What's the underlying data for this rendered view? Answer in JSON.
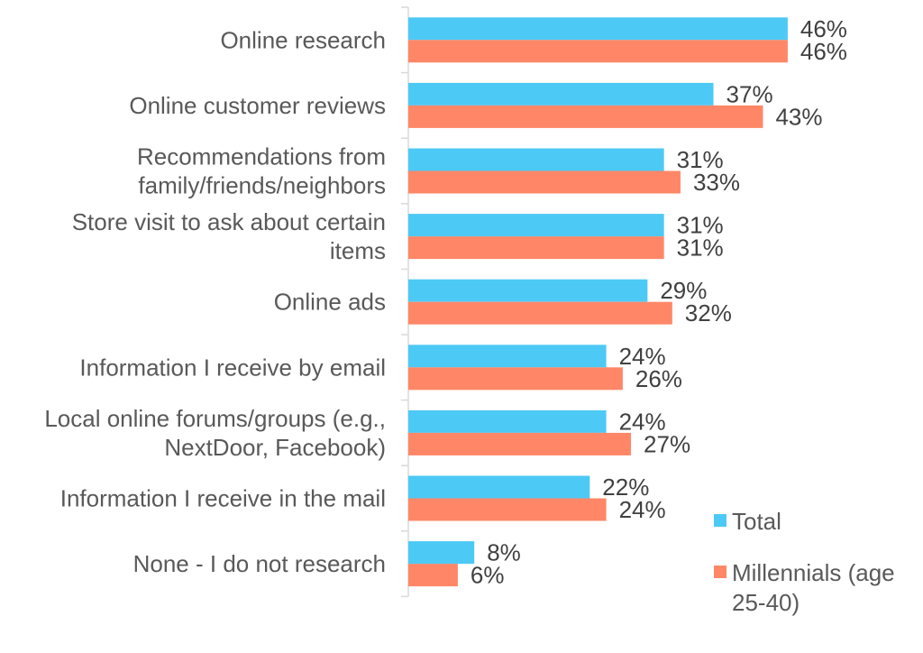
{
  "chart_data": {
    "type": "bar",
    "orientation": "horizontal",
    "categories": [
      [
        "Online research"
      ],
      [
        "Online customer reviews"
      ],
      [
        "Recommendations from",
        "family/friends/neighbors"
      ],
      [
        "Store visit to ask about certain",
        "items"
      ],
      [
        "Online ads"
      ],
      [
        "Information I receive by email"
      ],
      [
        "Local online forums/groups (e.g.,",
        "NextDoor, Facebook)"
      ],
      [
        "Information I receive in the mail"
      ],
      [
        "None - I do not research"
      ]
    ],
    "series": [
      {
        "name": "Total",
        "color": "#4DC9F6",
        "values": [
          46,
          37,
          31,
          31,
          29,
          24,
          24,
          22,
          8
        ]
      },
      {
        "name": "Millennials (age 25-40)",
        "color": "#FF8767",
        "values": [
          46,
          43,
          33,
          31,
          32,
          26,
          27,
          24,
          6
        ]
      }
    ],
    "value_format": "percent",
    "xlim": [
      0,
      50
    ],
    "grid": false,
    "legend": {
      "position": "bottom-right",
      "entries": [
        [
          "Total"
        ],
        [
          "Millennials (age",
          "25-40)"
        ]
      ]
    }
  }
}
